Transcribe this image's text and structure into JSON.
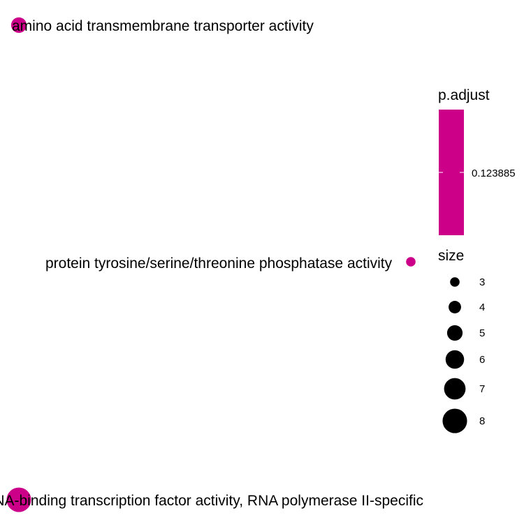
{
  "chart_data": {
    "type": "scatter",
    "description_kind": "enrichment network plot",
    "points": [
      {
        "label": "amino acid transmembrane transporter activity",
        "size": 5,
        "p_adjust": 0.123885
      },
      {
        "label": "protein tyrosine/serine/threonine phosphatase activity",
        "size": 3,
        "p_adjust": 0.123885
      },
      {
        "label": "DNA-binding transcription factor activity, RNA polymerase II-specific",
        "size": 8,
        "p_adjust": 0.123885
      }
    ],
    "legend": {
      "color": {
        "title": "p.adjust",
        "tick_labels": [
          "0.123885"
        ],
        "values": [
          0.123885
        ],
        "color": "#cc0088"
      },
      "size": {
        "title": "size",
        "values": [
          3,
          4,
          5,
          6,
          7,
          8
        ]
      }
    },
    "grid": false,
    "legend_placement": "right"
  },
  "colors": {
    "point_fill": "#cc0088",
    "legend_key": "#000000",
    "background": "#ffffff"
  }
}
